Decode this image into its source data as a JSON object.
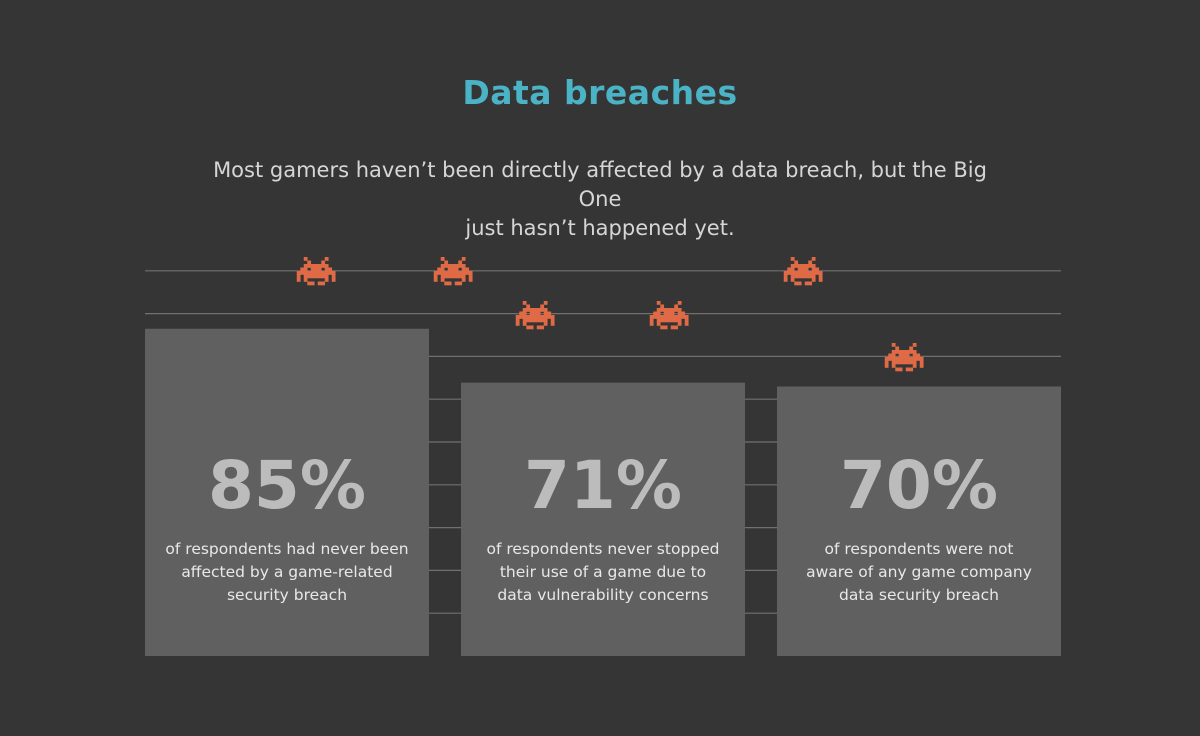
{
  "page": {
    "title": "Data breaches",
    "subtitle_lines": [
      "Most gamers haven’t been directly affected by a data breach, but the Big One",
      "just hasn’t happened yet."
    ]
  },
  "colors": {
    "background": "#353535",
    "title": "#4bb3c6",
    "bar": "#606060",
    "gridline": "#707070",
    "invader": "#e06a45",
    "value_text": "#bcbcbc",
    "caption_text": "#e8e8e8"
  },
  "chart_data": {
    "type": "bar",
    "title": "Data breaches",
    "categories": [
      "85%",
      "71%",
      "70%"
    ],
    "values": [
      85,
      71,
      70
    ],
    "unit": "%",
    "ylim": [
      0,
      100
    ],
    "bars": [
      {
        "value": 85,
        "value_label": "85%",
        "caption_lines": [
          "of respondents had never been",
          "affected by a game-related",
          "security breach"
        ]
      },
      {
        "value": 71,
        "value_label": "71%",
        "caption_lines": [
          "of respondents never stopped",
          "their use of a game due to",
          "data vulnerability concerns"
        ]
      },
      {
        "value": 70,
        "value_label": "70%",
        "caption_lines": [
          "of respondents were not",
          "aware of any game company",
          "data security breach"
        ]
      }
    ],
    "decorations": {
      "invader_icon": "space-invader-icon"
    }
  }
}
